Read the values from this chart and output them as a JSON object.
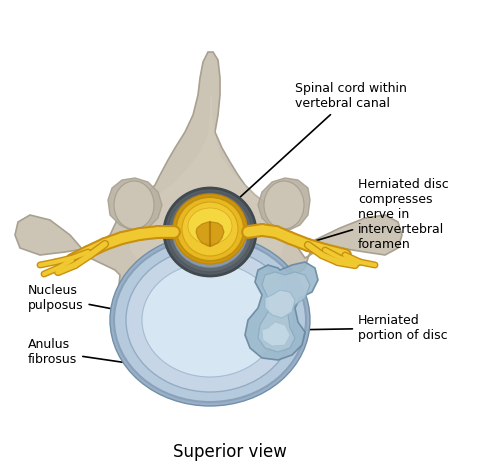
{
  "title": "Superior view",
  "title_fontsize": 12,
  "labels": {
    "spinal_cord": "Spinal cord within\nvertebral canal",
    "herniated_disc_nerve": "Herniated disc\ncompresses\nnerve in\nintervertebral\nforamen",
    "nucleus_pulposus": "Nucleus\npulposus",
    "anulus_fibrosus": "Anulus\nfibrosus",
    "herniated_portion": "Herniated\nportion of disc"
  },
  "colors": {
    "vertebra_fill": "#ccc4b4",
    "vertebra_dark": "#b8b0a0",
    "vertebra_shadow": "#a8a090",
    "disc_outer": "#b8cce0",
    "disc_mid": "#c8d8e8",
    "disc_inner": "#d8e8f4",
    "disc_herniated_outer": "#9ab0c8",
    "disc_herniated_inner": "#b0c8da",
    "canal_ring": "#606870",
    "canal_fill": "#707880",
    "cord_outer": "#e8b820",
    "cord_mid": "#f0c830",
    "cord_inner": "#f5d840",
    "cord_detail": "#d4a018",
    "nerve_main": "#f0c830",
    "nerve_edge": "#c89010",
    "annotation_line": "#000000",
    "background": "#ffffff",
    "text_color": "#000000"
  }
}
